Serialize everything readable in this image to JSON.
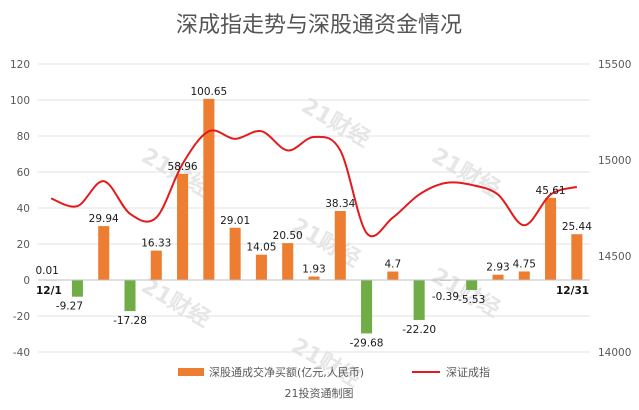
{
  "chart_data": {
    "type": "bar",
    "title": "深成指走势与深股通资金情况",
    "source": "21投资通制图",
    "watermark": "21财经",
    "colors": {
      "positive": "#ED7D31",
      "negative": "#70AD47",
      "line": "#E41A1C",
      "grid": "#E0E0E0",
      "axis": "#BFBFBF"
    },
    "y_left": {
      "range": [
        -40,
        120
      ],
      "ticks": [
        "-40",
        "-20",
        "0",
        "20",
        "40",
        "60",
        "80",
        "100",
        "120"
      ]
    },
    "y_right": {
      "range": [
        14000,
        15500
      ],
      "ticks": [
        "14000",
        "14500",
        "15000",
        "15500"
      ]
    },
    "x_endpoints": {
      "first": "12/1",
      "last": "12/31"
    },
    "series": [
      {
        "name": "深股通成交净买额(亿元,人民币)",
        "type": "bar",
        "values": [
          0.01,
          -9.27,
          29.94,
          -17.28,
          16.33,
          58.96,
          100.65,
          29.01,
          14.05,
          20.5,
          1.93,
          38.34,
          -29.68,
          4.7,
          -22.2,
          -0.39,
          -5.53,
          2.93,
          4.75,
          45.61,
          25.44
        ],
        "labels": [
          "0.01",
          "-9.27",
          "29.94",
          "-17.28",
          "16.33",
          "58.96",
          "100.65",
          "29.01",
          "14.05",
          "20.50",
          "1.93",
          "38.34",
          "-29.68",
          "4.7",
          "-22.20",
          "-0.39",
          "-5.53",
          "2.93",
          "4.75",
          "45.61",
          "25.44"
        ]
      },
      {
        "name": "深证成指",
        "type": "line",
        "axis": "right",
        "values": [
          14800,
          14760,
          14890,
          14720,
          14700,
          14980,
          15150,
          15110,
          15150,
          15050,
          15120,
          15050,
          14620,
          14700,
          14820,
          14880,
          14870,
          14820,
          14660,
          14820,
          14860
        ]
      }
    ]
  }
}
